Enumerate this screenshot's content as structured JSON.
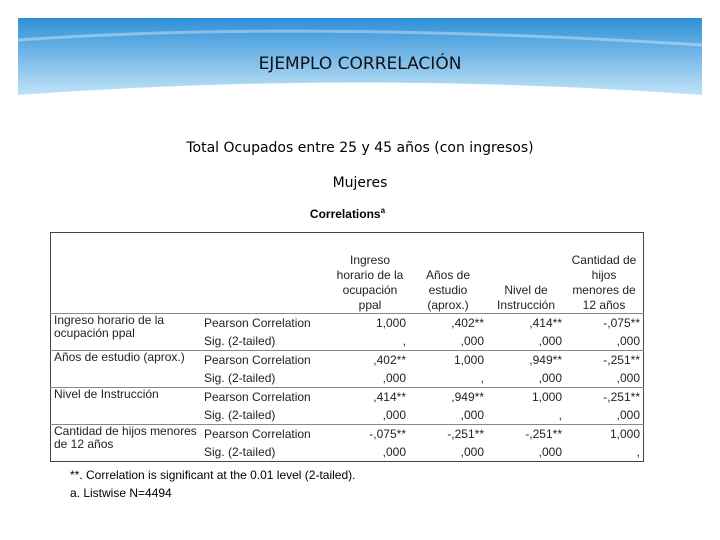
{
  "header": {
    "title": "EJEMPLO CORRELACIÓN"
  },
  "subtitle": "Total Ocupados entre 25 y 45 años (con ingresos)",
  "group": "Mujeres",
  "table": {
    "title": "Correlations",
    "title_note": "a",
    "stat_labels": [
      "Pearson Correlation",
      "Sig. (2-tailed)"
    ],
    "columns": [
      "Ingreso horario de la ocupación ppal",
      "Años de estudio (aprox.)",
      "Nivel de Instrucción",
      "Cantidad de hijos menores de 12 años"
    ],
    "rows": [
      {
        "label": "Ingreso horario de la ocupación ppal",
        "pearson": [
          "1,000",
          ",402**",
          ",414**",
          "-,075**"
        ],
        "sig": [
          ",",
          ",000",
          ",000",
          ",000"
        ]
      },
      {
        "label": "Años de estudio (aprox.)",
        "pearson": [
          ",402**",
          "1,000",
          ",949**",
          "-,251**"
        ],
        "sig": [
          ",000",
          ",",
          ",000",
          ",000"
        ]
      },
      {
        "label": "Nivel de Instrucción",
        "pearson": [
          ",414**",
          ",949**",
          "1,000",
          "-,251**"
        ],
        "sig": [
          ",000",
          ",000",
          ",",
          ",000"
        ]
      },
      {
        "label": "Cantidad de hijos menores de 12 años",
        "pearson": [
          "-,075**",
          "-,251**",
          "-,251**",
          "1,000"
        ],
        "sig": [
          ",000",
          ",000",
          ",000",
          ","
        ]
      }
    ],
    "footnotes": [
      "**. Correlation is significant at the 0.01 level (2-tailed).",
      "a. Listwise N=4494"
    ]
  }
}
